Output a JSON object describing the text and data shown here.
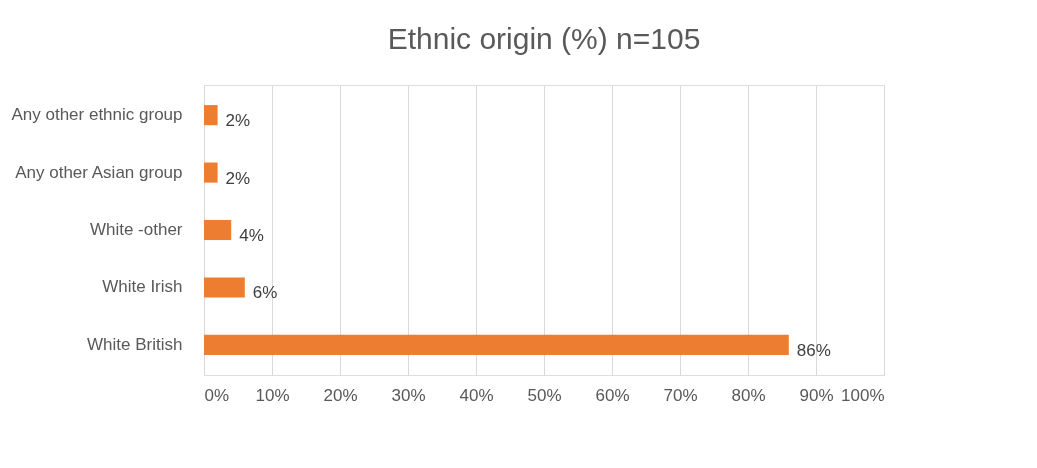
{
  "chart_data": {
    "type": "bar",
    "orientation": "horizontal",
    "title": "Ethnic origin (%) n=105",
    "categories": [
      "Any other ethnic group",
      "Any other Asian group",
      "White -other",
      "White Irish",
      "White British"
    ],
    "values": [
      2,
      2,
      4,
      6,
      86
    ],
    "value_labels": [
      "2%",
      "2%",
      "4%",
      "6%",
      "86%"
    ],
    "color": "#ed7d31",
    "xlim": [
      0,
      100
    ],
    "xticks": [
      {
        "value": 0,
        "label": "0%"
      },
      {
        "value": 10,
        "label": "10%"
      },
      {
        "value": 20,
        "label": "20%"
      },
      {
        "value": 30,
        "label": "30%"
      },
      {
        "value": 40,
        "label": "40%"
      },
      {
        "value": 50,
        "label": "50%"
      },
      {
        "value": 60,
        "label": "60%"
      },
      {
        "value": 70,
        "label": "70%"
      },
      {
        "value": 80,
        "label": "80%"
      },
      {
        "value": 90,
        "label": "90%"
      },
      {
        "value": 100,
        "label": "100%"
      }
    ],
    "grid": "x"
  }
}
